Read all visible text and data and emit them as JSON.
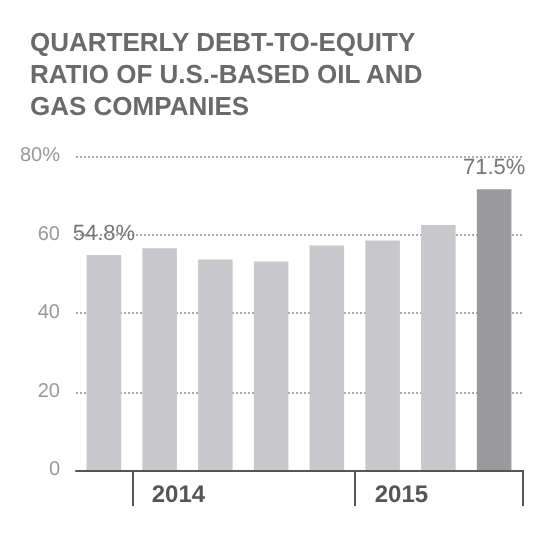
{
  "chart_data": {
    "type": "bar",
    "title": "QUARTERLY DEBT-TO-EQUITY RATIO OF U.S.-BASED OIL AND GAS COMPANIES",
    "categories": [
      null,
      "2014",
      null,
      null,
      null,
      "2015",
      null,
      null
    ],
    "values": [
      54.8,
      56.5,
      53.6,
      53.1,
      57.2,
      58.5,
      62.4,
      71.5
    ],
    "colors": [
      "#c8c8ca",
      "#c8c8ca",
      "#c8c8ca",
      "#c8c8ca",
      "#c8c8ca",
      "#c8c8ca",
      "#c8c8ca",
      "#9a9a9c"
    ],
    "value_labels": [
      "54.8%",
      null,
      null,
      null,
      null,
      null,
      null,
      "71.5%"
    ],
    "ylim": [
      0,
      80
    ],
    "yticks": [
      0,
      20,
      40,
      60,
      {
        "value": 80,
        "label": "80%"
      }
    ],
    "grid": "y"
  }
}
